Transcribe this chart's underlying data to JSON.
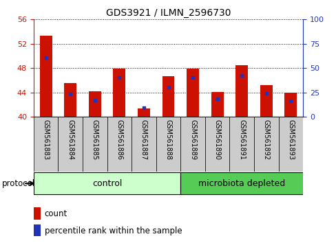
{
  "title": "GDS3921 / ILMN_2596730",
  "samples": [
    "GSM561883",
    "GSM561884",
    "GSM561885",
    "GSM561886",
    "GSM561887",
    "GSM561888",
    "GSM561889",
    "GSM561890",
    "GSM561891",
    "GSM561892",
    "GSM561893"
  ],
  "counts": [
    53.3,
    45.5,
    44.2,
    47.9,
    41.3,
    46.7,
    47.9,
    44.1,
    48.5,
    45.2,
    44.0
  ],
  "pct_right": [
    61,
    23,
    17,
    40,
    9,
    30,
    40,
    18,
    42,
    24,
    16
  ],
  "y_min": 40,
  "y_max": 56,
  "y_ticks": [
    40,
    44,
    48,
    52,
    56
  ],
  "y2_ticks": [
    0,
    25,
    50,
    75,
    100
  ],
  "control_samples": 6,
  "control_label": "control",
  "treatment_label": "microbiota depleted",
  "legend_count": "count",
  "legend_pct": "percentile rank within the sample",
  "bar_color": "#cc1100",
  "blue_color": "#2233bb",
  "control_bg": "#ccffcc",
  "treatment_bg": "#55cc55",
  "sample_bg": "#cccccc",
  "bar_width": 0.5
}
